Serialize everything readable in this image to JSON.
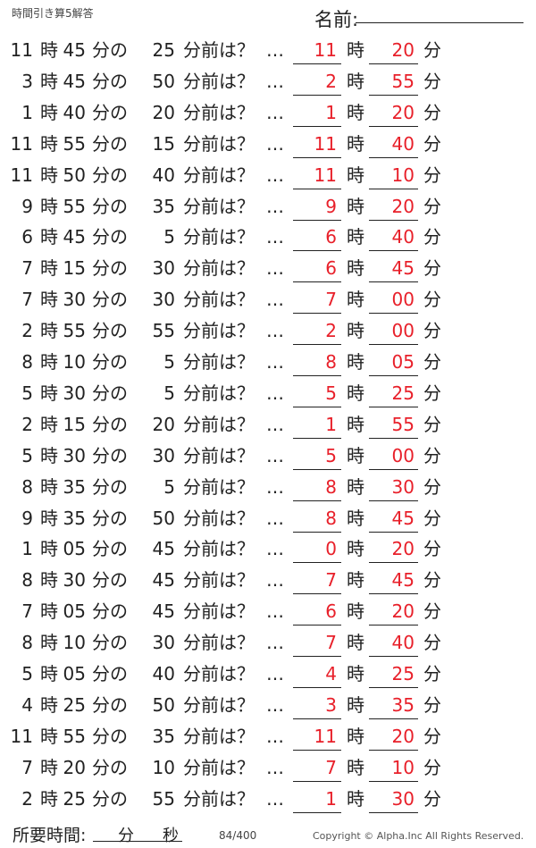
{
  "title": "時間引き算5解答",
  "name_label": "名前:",
  "hour_unit": "時",
  "minute_unit": "分",
  "of_text": "分の",
  "before_text": "分前は？",
  "ellipsis": "…",
  "answer_color": "#e8202a",
  "problems": [
    {
      "h": "11",
      "m": "45",
      "sub": "25",
      "ah": "11",
      "am": "20"
    },
    {
      "h": "3",
      "m": "45",
      "sub": "50",
      "ah": "2",
      "am": "55"
    },
    {
      "h": "1",
      "m": "40",
      "sub": "20",
      "ah": "1",
      "am": "20"
    },
    {
      "h": "11",
      "m": "55",
      "sub": "15",
      "ah": "11",
      "am": "40"
    },
    {
      "h": "11",
      "m": "50",
      "sub": "40",
      "ah": "11",
      "am": "10"
    },
    {
      "h": "9",
      "m": "55",
      "sub": "35",
      "ah": "9",
      "am": "20"
    },
    {
      "h": "6",
      "m": "45",
      "sub": "5",
      "ah": "6",
      "am": "40"
    },
    {
      "h": "7",
      "m": "15",
      "sub": "30",
      "ah": "6",
      "am": "45"
    },
    {
      "h": "7",
      "m": "30",
      "sub": "30",
      "ah": "7",
      "am": "00"
    },
    {
      "h": "2",
      "m": "55",
      "sub": "55",
      "ah": "2",
      "am": "00"
    },
    {
      "h": "8",
      "m": "10",
      "sub": "5",
      "ah": "8",
      "am": "05"
    },
    {
      "h": "5",
      "m": "30",
      "sub": "5",
      "ah": "5",
      "am": "25"
    },
    {
      "h": "2",
      "m": "15",
      "sub": "20",
      "ah": "1",
      "am": "55"
    },
    {
      "h": "5",
      "m": "30",
      "sub": "30",
      "ah": "5",
      "am": "00"
    },
    {
      "h": "8",
      "m": "35",
      "sub": "5",
      "ah": "8",
      "am": "30"
    },
    {
      "h": "9",
      "m": "35",
      "sub": "50",
      "ah": "8",
      "am": "45"
    },
    {
      "h": "1",
      "m": "05",
      "sub": "45",
      "ah": "0",
      "am": "20"
    },
    {
      "h": "8",
      "m": "30",
      "sub": "45",
      "ah": "7",
      "am": "45"
    },
    {
      "h": "7",
      "m": "05",
      "sub": "45",
      "ah": "6",
      "am": "20"
    },
    {
      "h": "8",
      "m": "10",
      "sub": "30",
      "ah": "7",
      "am": "40"
    },
    {
      "h": "5",
      "m": "05",
      "sub": "40",
      "ah": "4",
      "am": "25"
    },
    {
      "h": "4",
      "m": "25",
      "sub": "50",
      "ah": "3",
      "am": "35"
    },
    {
      "h": "11",
      "m": "55",
      "sub": "35",
      "ah": "11",
      "am": "20"
    },
    {
      "h": "7",
      "m": "20",
      "sub": "10",
      "ah": "7",
      "am": "10"
    },
    {
      "h": "2",
      "m": "25",
      "sub": "55",
      "ah": "1",
      "am": "30"
    }
  ],
  "footer": {
    "time_label": "所要時間:",
    "minute": "分",
    "second": "秒",
    "page": "84/400",
    "copyright": "Copyright ©  Alpha.Inc All Rights Reserved."
  }
}
